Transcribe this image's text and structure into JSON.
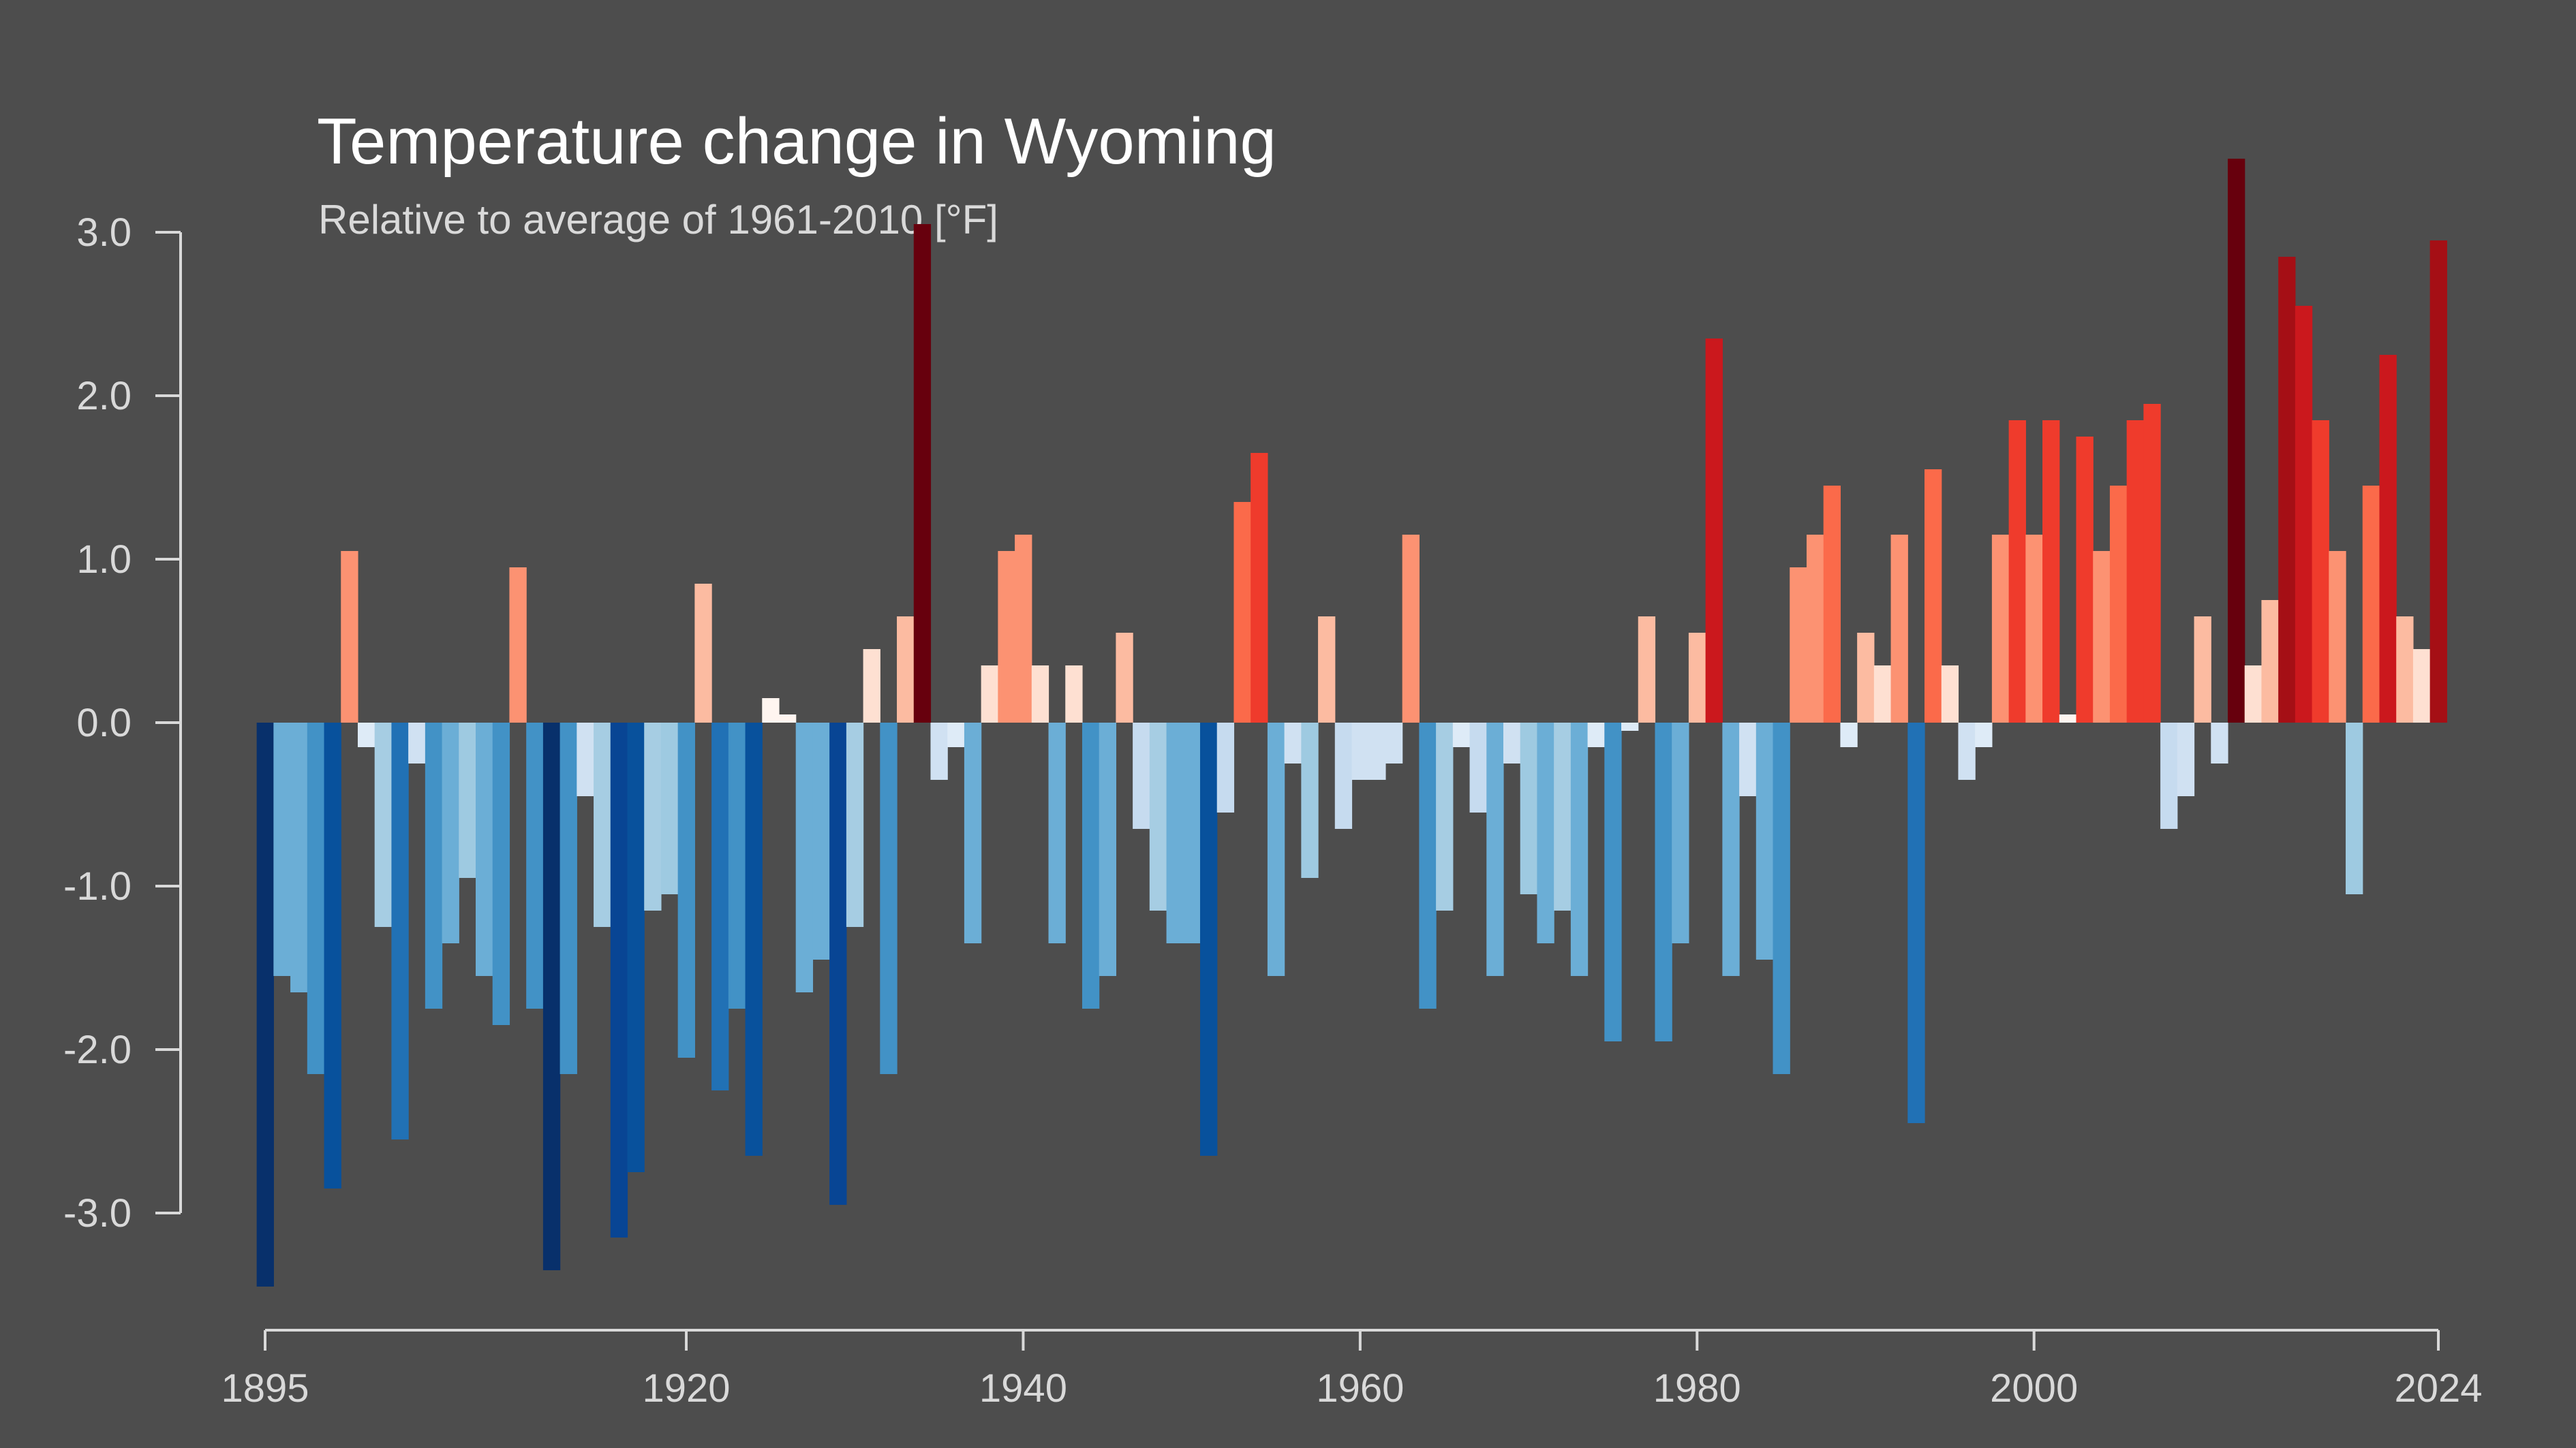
{
  "chart_data": {
    "type": "bar",
    "title": "Temperature change in Wyoming",
    "subtitle": "Relative to average of 1961-2010  [°F]",
    "xlabel": "",
    "ylabel": "",
    "x_ticks": [
      "1895",
      "1920",
      "1940",
      "1960",
      "1980",
      "2000",
      "2024"
    ],
    "y_ticks": [
      "3.0",
      "2.0",
      "1.0",
      "0.0",
      "-1.0",
      "-2.0",
      "-3.0"
    ],
    "ylim": [
      -3.7,
      3.4
    ],
    "start_year": 1895,
    "end_year": 2024,
    "grid": false,
    "legend": "none",
    "colors": {
      "background": "#4d4d4d",
      "axis": "#d9d9d9",
      "title": "#ffffff",
      "subtitle": "#d9d9d9"
    },
    "years": [
      1895,
      1896,
      1897,
      1898,
      1899,
      1900,
      1901,
      1902,
      1903,
      1904,
      1905,
      1906,
      1907,
      1908,
      1909,
      1910,
      1911,
      1912,
      1913,
      1914,
      1915,
      1916,
      1917,
      1918,
      1919,
      1920,
      1921,
      1922,
      1923,
      1924,
      1925,
      1926,
      1927,
      1928,
      1929,
      1930,
      1931,
      1932,
      1933,
      1934,
      1935,
      1936,
      1937,
      1938,
      1939,
      1940,
      1941,
      1942,
      1943,
      1944,
      1945,
      1946,
      1947,
      1948,
      1949,
      1950,
      1951,
      1952,
      1953,
      1954,
      1955,
      1956,
      1957,
      1958,
      1959,
      1960,
      1961,
      1962,
      1963,
      1964,
      1965,
      1966,
      1967,
      1968,
      1969,
      1970,
      1971,
      1972,
      1973,
      1974,
      1975,
      1976,
      1977,
      1978,
      1979,
      1980,
      1981,
      1982,
      1983,
      1984,
      1985,
      1986,
      1987,
      1988,
      1989,
      1990,
      1991,
      1992,
      1993,
      1994,
      1995,
      1996,
      1997,
      1998,
      1999,
      2000,
      2001,
      2002,
      2003,
      2004,
      2005,
      2006,
      2007,
      2008,
      2009,
      2010,
      2011,
      2012,
      2013,
      2014,
      2015,
      2016,
      2017,
      2018,
      2019,
      2020,
      2021,
      2022,
      2023,
      2024
    ],
    "values": [
      -3.45,
      -1.55,
      -1.65,
      -2.15,
      -2.85,
      1.05,
      -0.15,
      -1.25,
      -2.55,
      -0.25,
      -1.75,
      -1.35,
      -0.95,
      -1.55,
      -1.85,
      0.95,
      -1.75,
      -3.35,
      -2.15,
      -0.45,
      -1.25,
      -3.15,
      -2.75,
      -1.15,
      -1.05,
      -2.05,
      0.85,
      -2.25,
      -1.75,
      -2.65,
      0.15,
      0.05,
      -1.65,
      -1.45,
      -2.95,
      -1.25,
      0.45,
      -2.15,
      0.65,
      3.05,
      -0.35,
      -0.15,
      -1.35,
      0.35,
      1.05,
      1.15,
      0.35,
      -1.35,
      0.35,
      -1.75,
      -1.55,
      0.55,
      -0.65,
      -1.15,
      -1.35,
      -1.35,
      -2.65,
      -0.55,
      1.35,
      1.65,
      -1.55,
      -0.25,
      -0.95,
      0.65,
      -0.65,
      -0.35,
      -0.35,
      -0.25,
      1.15,
      -1.75,
      -1.15,
      -0.15,
      -0.55,
      -1.55,
      -0.25,
      -1.05,
      -1.35,
      -1.15,
      -1.55,
      -0.15,
      -1.95,
      -0.05,
      0.65,
      -1.95,
      -1.35,
      0.55,
      2.35,
      -1.55,
      -0.45,
      -1.45,
      -2.15,
      0.95,
      1.15,
      1.45,
      -0.15,
      0.55,
      0.35,
      1.15,
      -2.45,
      1.55,
      0.35,
      -0.35,
      -0.15,
      1.15,
      1.85,
      1.15,
      1.85,
      0.05,
      1.75,
      1.05,
      1.45,
      1.85,
      1.95,
      -0.65,
      -0.45,
      0.65,
      -0.25,
      3.45,
      0.35,
      0.75,
      2.85,
      2.55,
      1.85,
      1.05,
      -1.05,
      1.45,
      2.25,
      0.65,
      0.45,
      2.95
    ]
  }
}
